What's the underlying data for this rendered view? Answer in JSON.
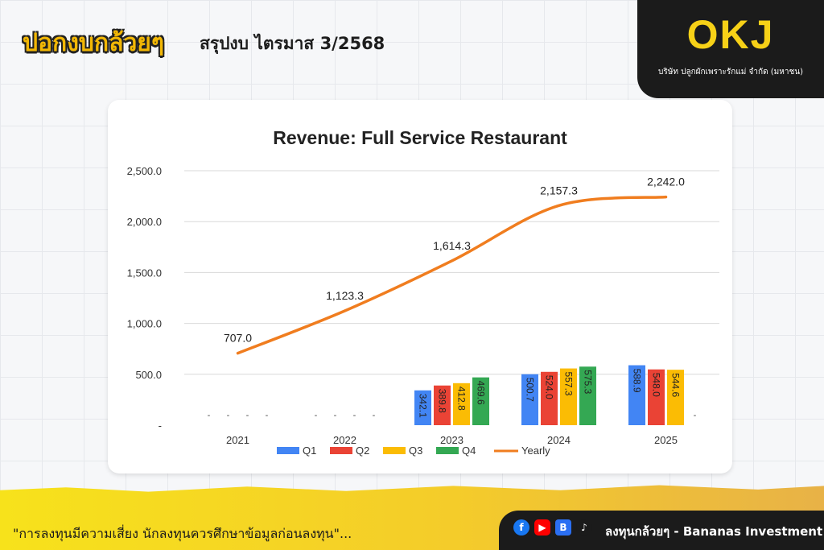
{
  "header": {
    "logo_text": "ปอกงบกล้วยๆ",
    "subtitle": "สรุปงบ ไตรมาส 3/2568"
  },
  "company": {
    "logo": "OKJ",
    "name": "บริษัท ปลูกผักเพราะรักแม่ จำกัด (มหาชน)"
  },
  "footer": {
    "disclaimer": "\"การลงทุนมีความเสี่ยง นักลงทุนควรศึกษาข้อมูลก่อนลงทุน\"...",
    "brand": "ลงทุนกล้วยๆ - Bananas Investment",
    "icons": [
      "facebook-icon",
      "youtube-icon",
      "blockdit-icon",
      "tiktok-icon"
    ]
  },
  "chart_data": {
    "type": "bar",
    "title": "Revenue: Full Service Restaurant",
    "categories": [
      "2021",
      "2022",
      "2023",
      "2024",
      "2025"
    ],
    "ylim": [
      0,
      2500
    ],
    "yticks": [
      "-",
      "500.0",
      "1,000.0",
      "1,500.0",
      "2,000.0",
      "2,500.0"
    ],
    "grid": true,
    "legend_position": "bottom",
    "series": [
      {
        "name": "Q1",
        "color": "#4285f4",
        "values": [
          null,
          null,
          342.1,
          500.7,
          588.9
        ],
        "labels": [
          "",
          "",
          "342.1",
          "500.7",
          "588.9"
        ]
      },
      {
        "name": "Q2",
        "color": "#ea4335",
        "values": [
          null,
          null,
          389.8,
          524.0,
          548.0
        ],
        "labels": [
          "",
          "",
          "389.8",
          "524.0",
          "548.0"
        ]
      },
      {
        "name": "Q3",
        "color": "#fbbc04",
        "values": [
          null,
          null,
          412.8,
          557.3,
          544.6
        ],
        "labels": [
          "",
          "",
          "412.8",
          "557.3",
          "544.6"
        ]
      },
      {
        "name": "Q4",
        "color": "#34a853",
        "values": [
          null,
          null,
          469.6,
          575.3,
          null
        ],
        "labels": [
          "",
          "",
          "469.6",
          "575.3",
          ""
        ]
      }
    ],
    "line": {
      "name": "Yearly",
      "color": "#f07d1f",
      "values": [
        707.0,
        1123.3,
        1614.3,
        2157.3,
        2242.0
      ],
      "labels": [
        "707.0",
        "1,123.3",
        "1,614.3",
        "2,157.3",
        "2,242.0"
      ]
    },
    "empty_label": "-"
  }
}
